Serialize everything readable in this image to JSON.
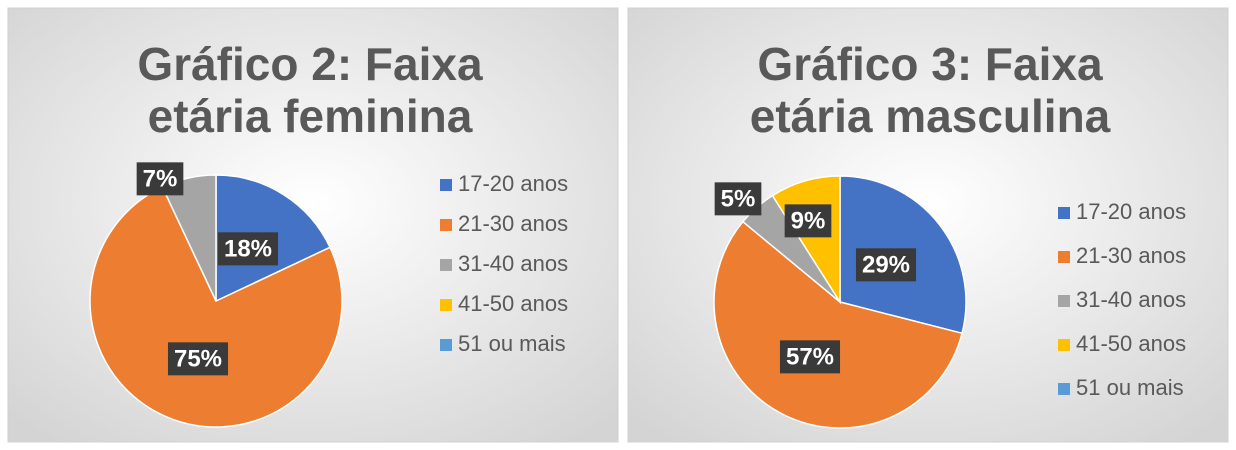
{
  "chart_data": [
    {
      "type": "pie",
      "title": "Gráfico 2: Faixa etária feminina",
      "categories": [
        "17-20 anos",
        "21-30 anos",
        "31-40 anos",
        "41-50 anos",
        "51 ou mais"
      ],
      "values": [
        18,
        75,
        7,
        0,
        0
      ],
      "value_labels": [
        "18%",
        "75%",
        "7%",
        null,
        null
      ],
      "colors": [
        "#4472c4",
        "#ed7d31",
        "#a5a5a5",
        "#ffc000",
        "#5b9bd5"
      ],
      "legend": "right"
    },
    {
      "type": "pie",
      "title": "Gráfico 3: Faixa etária masculina",
      "categories": [
        "17-20 anos",
        "21-30 anos",
        "31-40 anos",
        "41-50 anos",
        "51 ou mais"
      ],
      "values": [
        29,
        57,
        5,
        9,
        0
      ],
      "value_labels": [
        "29%",
        "57%",
        "5%",
        "9%",
        null
      ],
      "colors": [
        "#4472c4",
        "#ed7d31",
        "#a5a5a5",
        "#ffc000",
        "#5b9bd5"
      ],
      "legend": "right"
    }
  ]
}
